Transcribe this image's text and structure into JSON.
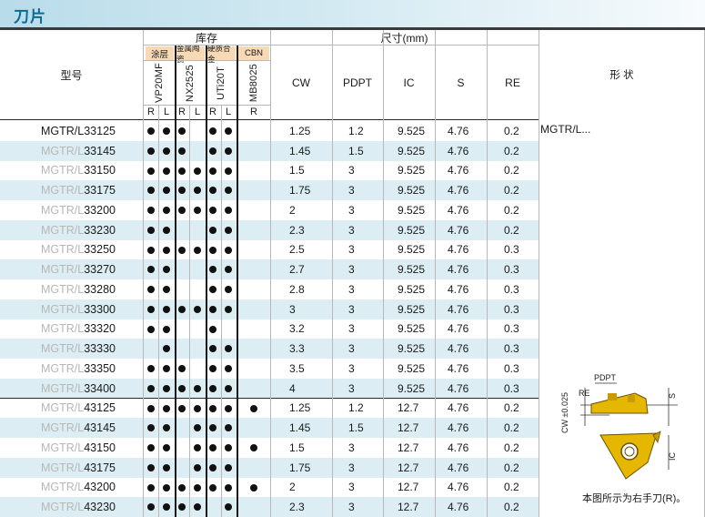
{
  "title": "刀片",
  "header": {
    "model": "型号",
    "stock": "库存",
    "dims": "尺寸(mm)",
    "shape": "形 状",
    "groups": [
      "涂层",
      "金属陶瓷",
      "硬质合金",
      "CBN"
    ],
    "grades": [
      "VP20MF",
      "NX2525",
      "UTi20T",
      "MB8025"
    ],
    "hands": [
      "R",
      "L",
      "R",
      "L",
      "R",
      "L",
      "R"
    ],
    "cols": [
      "CW",
      "PDPT",
      "IC",
      "S",
      "RE"
    ]
  },
  "shape_label": "MGTR/L...",
  "diagram_labels": {
    "pdpt": "PDPT",
    "re": "RE",
    "cw": "CW ±0.025",
    "s": "S",
    "ic": "IC"
  },
  "diagram_note": "本图所示为右手刀(R)。",
  "rows": [
    {
      "prefix": "MGTR/L",
      "code": "33125",
      "avail": [
        1,
        1,
        1,
        0,
        1,
        1,
        0
      ],
      "cw": "1.25",
      "pdpt": "1.2",
      "ic": "9.525",
      "s": "4.76",
      "re": "0.2"
    },
    {
      "prefix": "MGTR/L",
      "code": "33145",
      "avail": [
        1,
        1,
        1,
        0,
        1,
        1,
        0
      ],
      "cw": "1.45",
      "pdpt": "1.5",
      "ic": "9.525",
      "s": "4.76",
      "re": "0.2"
    },
    {
      "prefix": "MGTR/L",
      "code": "33150",
      "avail": [
        1,
        1,
        1,
        1,
        1,
        1,
        0
      ],
      "cw": "1.5",
      "pdpt": "3",
      "ic": "9.525",
      "s": "4.76",
      "re": "0.2"
    },
    {
      "prefix": "MGTR/L",
      "code": "33175",
      "avail": [
        1,
        1,
        1,
        1,
        1,
        1,
        0
      ],
      "cw": "1.75",
      "pdpt": "3",
      "ic": "9.525",
      "s": "4.76",
      "re": "0.2"
    },
    {
      "prefix": "MGTR/L",
      "code": "33200",
      "avail": [
        1,
        1,
        1,
        1,
        1,
        1,
        0
      ],
      "cw": "2",
      "pdpt": "3",
      "ic": "9.525",
      "s": "4.76",
      "re": "0.2"
    },
    {
      "prefix": "MGTR/L",
      "code": "33230",
      "avail": [
        1,
        1,
        0,
        0,
        1,
        1,
        0
      ],
      "cw": "2.3",
      "pdpt": "3",
      "ic": "9.525",
      "s": "4.76",
      "re": "0.2"
    },
    {
      "prefix": "MGTR/L",
      "code": "33250",
      "avail": [
        1,
        1,
        1,
        1,
        1,
        1,
        0
      ],
      "cw": "2.5",
      "pdpt": "3",
      "ic": "9.525",
      "s": "4.76",
      "re": "0.3"
    },
    {
      "prefix": "MGTR/L",
      "code": "33270",
      "avail": [
        1,
        1,
        0,
        0,
        1,
        1,
        0
      ],
      "cw": "2.7",
      "pdpt": "3",
      "ic": "9.525",
      "s": "4.76",
      "re": "0.3"
    },
    {
      "prefix": "MGTR/L",
      "code": "33280",
      "avail": [
        1,
        1,
        0,
        0,
        1,
        1,
        0
      ],
      "cw": "2.8",
      "pdpt": "3",
      "ic": "9.525",
      "s": "4.76",
      "re": "0.3"
    },
    {
      "prefix": "MGTR/L",
      "code": "33300",
      "avail": [
        1,
        1,
        1,
        1,
        1,
        1,
        0
      ],
      "cw": "3",
      "pdpt": "3",
      "ic": "9.525",
      "s": "4.76",
      "re": "0.3"
    },
    {
      "prefix": "MGTR/L",
      "code": "33320",
      "avail": [
        1,
        1,
        0,
        0,
        1,
        0,
        0
      ],
      "cw": "3.2",
      "pdpt": "3",
      "ic": "9.525",
      "s": "4.76",
      "re": "0.3"
    },
    {
      "prefix": "MGTR/L",
      "code": "33330",
      "avail": [
        0,
        1,
        0,
        0,
        1,
        1,
        0
      ],
      "cw": "3.3",
      "pdpt": "3",
      "ic": "9.525",
      "s": "4.76",
      "re": "0.3"
    },
    {
      "prefix": "MGTR/L",
      "code": "33350",
      "avail": [
        1,
        1,
        1,
        0,
        1,
        1,
        0
      ],
      "cw": "3.5",
      "pdpt": "3",
      "ic": "9.525",
      "s": "4.76",
      "re": "0.3"
    },
    {
      "prefix": "MGTR/L",
      "code": "33400",
      "avail": [
        1,
        1,
        1,
        1,
        1,
        1,
        0
      ],
      "cw": "4",
      "pdpt": "3",
      "ic": "9.525",
      "s": "4.76",
      "re": "0.3"
    },
    {
      "prefix": "MGTR/L",
      "code": "43125",
      "avail": [
        1,
        1,
        1,
        1,
        1,
        1,
        1
      ],
      "cw": "1.25",
      "pdpt": "1.2",
      "ic": "12.7",
      "s": "4.76",
      "re": "0.2"
    },
    {
      "prefix": "MGTR/L",
      "code": "43145",
      "avail": [
        1,
        1,
        0,
        1,
        1,
        1,
        0
      ],
      "cw": "1.45",
      "pdpt": "1.5",
      "ic": "12.7",
      "s": "4.76",
      "re": "0.2"
    },
    {
      "prefix": "MGTR/L",
      "code": "43150",
      "avail": [
        1,
        1,
        0,
        1,
        1,
        1,
        1
      ],
      "cw": "1.5",
      "pdpt": "3",
      "ic": "12.7",
      "s": "4.76",
      "re": "0.2"
    },
    {
      "prefix": "MGTR/L",
      "code": "43175",
      "avail": [
        1,
        1,
        0,
        1,
        1,
        1,
        0
      ],
      "cw": "1.75",
      "pdpt": "3",
      "ic": "12.7",
      "s": "4.76",
      "re": "0.2"
    },
    {
      "prefix": "MGTR/L",
      "code": "43200",
      "avail": [
        1,
        1,
        1,
        1,
        1,
        1,
        1
      ],
      "cw": "2",
      "pdpt": "3",
      "ic": "12.7",
      "s": "4.76",
      "re": "0.2"
    },
    {
      "prefix": "MGTR/L",
      "code": "43230",
      "avail": [
        1,
        1,
        1,
        1,
        0,
        1,
        0
      ],
      "cw": "2.3",
      "pdpt": "3",
      "ic": "12.7",
      "s": "4.76",
      "re": "0.2"
    }
  ]
}
